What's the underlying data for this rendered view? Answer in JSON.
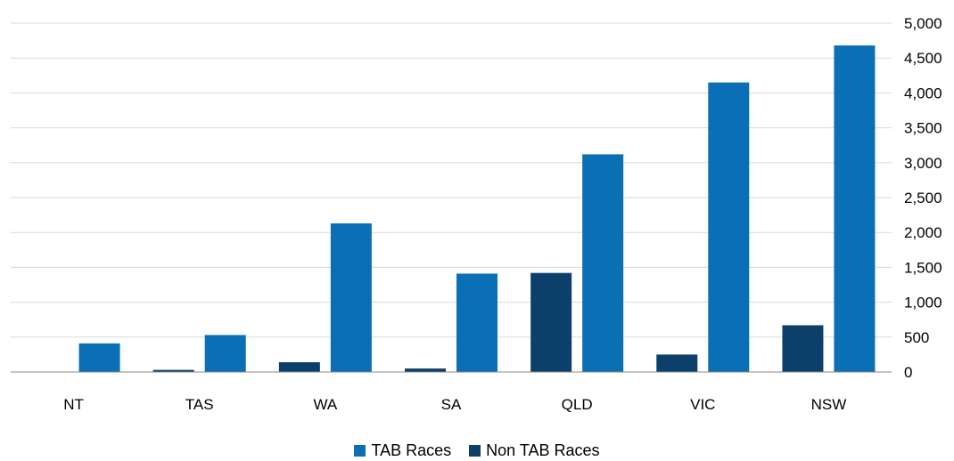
{
  "chart_data": {
    "type": "bar",
    "categories": [
      "NT",
      "TAS",
      "WA",
      "SA",
      "QLD",
      "VIC",
      "NSW"
    ],
    "series": [
      {
        "name": "Non TAB Races",
        "color": "#0c3f69",
        "values": [
          0,
          30,
          140,
          50,
          1420,
          250,
          670
        ]
      },
      {
        "name": "TAB Races",
        "color": "#0b6fb6",
        "values": [
          410,
          530,
          2130,
          1410,
          3120,
          4150,
          4680
        ]
      }
    ],
    "y_ticks": [
      "0",
      "500",
      "1,000",
      "1,500",
      "2,000",
      "2,500",
      "3,000",
      "3,500",
      "4,000",
      "4,500",
      "5,000"
    ],
    "ylim": [
      0,
      5000
    ],
    "y_axis_position": "right",
    "grid": true,
    "legend_position": "bottom",
    "legend": [
      "TAB Races",
      "Non TAB Races"
    ]
  }
}
